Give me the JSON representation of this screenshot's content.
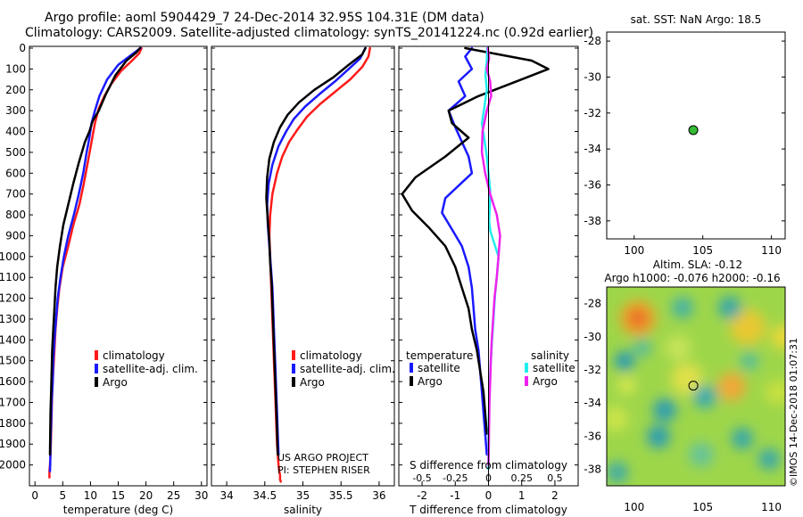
{
  "header": {
    "title": "Argo profile: aoml 5904429_7 24-Dec-2014 32.95S 104.31E (DM data)",
    "subtitle": "Climatology: CARS2009. Satellite-adjusted climatology: synTS_20141224.nc (0.92d earlier)"
  },
  "colors": {
    "climatology": "#ff1a1a",
    "satellite": "#1a1aff",
    "argo": "#000000",
    "sat_sal": "#22eeee",
    "argo_sal": "#ee22ee",
    "float_marker": "#33bb33"
  },
  "chart_data": [
    {
      "type": "line",
      "name_id": "temperature",
      "xlabel": "temperature (deg C)",
      "xlim": [
        -1,
        31
      ],
      "ylim": [
        2100,
        0
      ],
      "xticks": [
        0,
        5,
        10,
        15,
        20,
        25,
        30
      ],
      "xticklabels": [
        "0",
        "5",
        "10",
        "15",
        "20",
        "25",
        "30"
      ],
      "yticks": [
        0,
        100,
        200,
        300,
        400,
        500,
        600,
        700,
        800,
        900,
        1000,
        1100,
        1200,
        1300,
        1400,
        1500,
        1600,
        1700,
        1800,
        1900,
        2000
      ],
      "yticklabels": [
        "0",
        "100",
        "200",
        "300",
        "400",
        "500",
        "600",
        "700",
        "800",
        "900",
        "1000",
        "1100",
        "1200",
        "1300",
        "1400",
        "1500",
        "1600",
        "1700",
        "1800",
        "1900",
        "2000"
      ],
      "legend": [
        "climatology",
        "satellite-adj. clim.",
        "Argo"
      ],
      "series": [
        {
          "name": "climatology",
          "color": "#ff1a1a",
          "x": [
            19.2,
            18.8,
            17.5,
            15.5,
            13.8,
            12.5,
            11.5,
            10.8,
            10.2,
            9.5,
            8.8,
            8.0,
            6.9,
            6.0,
            5.0,
            4.4,
            4.0,
            3.7,
            3.5,
            3.3,
            3.1,
            3.0,
            2.9,
            2.8,
            2.7,
            2.6,
            2.6
          ],
          "y": [
            0,
            25,
            60,
            110,
            170,
            230,
            290,
            360,
            450,
            550,
            650,
            750,
            850,
            950,
            1050,
            1150,
            1250,
            1350,
            1450,
            1550,
            1650,
            1750,
            1850,
            1950,
            2000,
            2030,
            2060
          ]
        },
        {
          "name": "satellite-adj. clim.",
          "color": "#1a1aff",
          "x": [
            19.0,
            17.5,
            15.0,
            13.0,
            11.6,
            10.8,
            10.2,
            9.8,
            9.3,
            8.7,
            7.9,
            7.0,
            6.0,
            5.2,
            4.6,
            4.1,
            3.8,
            3.5,
            3.3,
            3.2,
            3.0,
            2.9,
            2.8,
            2.75,
            2.7
          ],
          "y": [
            0,
            30,
            80,
            150,
            230,
            300,
            360,
            430,
            500,
            600,
            700,
            800,
            900,
            1000,
            1100,
            1200,
            1300,
            1400,
            1500,
            1600,
            1700,
            1800,
            1900,
            2000,
            2030
          ]
        },
        {
          "name": "Argo",
          "color": "#000000",
          "x": [
            18.9,
            18.3,
            16.5,
            14.5,
            12.8,
            11.5,
            10.4,
            9.8,
            9.0,
            7.9,
            6.9,
            6.0,
            5.1,
            4.5,
            4.0,
            3.7,
            3.5,
            3.3,
            3.1,
            3.0,
            2.9,
            2.8,
            2.75,
            2.7
          ],
          "y": [
            0,
            20,
            60,
            130,
            220,
            300,
            350,
            400,
            450,
            550,
            650,
            750,
            850,
            950,
            1050,
            1150,
            1250,
            1350,
            1450,
            1550,
            1650,
            1750,
            1850,
            1950
          ]
        }
      ]
    },
    {
      "type": "line",
      "name_id": "salinity",
      "xlabel": "salinity",
      "xlim": [
        33.8,
        36.2
      ],
      "ylim": [
        2100,
        0
      ],
      "xticks": [
        34,
        34.5,
        35,
        35.5,
        36
      ],
      "xticklabels": [
        "34",
        "34.5",
        "35",
        "35.5",
        "36"
      ],
      "legend": [
        "climatology",
        "satellite-adj. clim.",
        "Argo"
      ],
      "credit": [
        "US ARGO PROJECT",
        "PI: STEPHEN RISER"
      ],
      "series": [
        {
          "name": "climatology",
          "color": "#ff1a1a",
          "x": [
            35.88,
            35.86,
            35.78,
            35.62,
            35.42,
            35.22,
            35.05,
            34.93,
            34.82,
            34.73,
            34.66,
            34.6,
            34.57,
            34.56,
            34.57,
            34.58,
            34.59,
            34.6,
            34.61,
            34.62,
            34.63,
            34.64,
            34.65,
            34.66,
            34.67,
            34.68,
            34.69,
            34.7,
            34.7,
            34.71
          ],
          "y": [
            0,
            40,
            90,
            150,
            210,
            270,
            330,
            390,
            450,
            520,
            600,
            700,
            800,
            900,
            1000,
            1100,
            1200,
            1300,
            1400,
            1500,
            1600,
            1700,
            1800,
            1900,
            1950,
            2000,
            2030,
            2050,
            2070,
            2080
          ]
        },
        {
          "name": "satellite-adj. clim.",
          "color": "#1a1aff",
          "x": [
            35.82,
            35.75,
            35.6,
            35.42,
            35.22,
            35.03,
            34.88,
            34.78,
            34.68,
            34.6,
            34.55,
            34.53,
            34.54,
            34.56,
            34.58,
            34.6,
            34.61,
            34.62,
            34.63,
            34.64,
            34.65,
            34.66,
            34.67,
            34.68
          ],
          "y": [
            0,
            50,
            100,
            160,
            220,
            280,
            340,
            400,
            470,
            560,
            650,
            750,
            850,
            950,
            1050,
            1150,
            1250,
            1350,
            1450,
            1550,
            1650,
            1750,
            1850,
            1950
          ]
        },
        {
          "name": "Argo",
          "color": "#000000",
          "x": [
            35.82,
            35.78,
            35.6,
            35.4,
            35.15,
            34.95,
            34.8,
            34.7,
            34.62,
            34.56,
            34.53,
            34.52,
            34.54,
            34.56,
            34.57,
            34.59,
            34.6,
            34.61,
            34.62,
            34.63,
            34.64,
            34.65,
            34.66,
            34.67
          ],
          "y": [
            0,
            30,
            80,
            140,
            200,
            260,
            320,
            380,
            450,
            530,
            620,
            720,
            830,
            930,
            1030,
            1130,
            1230,
            1330,
            1430,
            1530,
            1630,
            1730,
            1830,
            1950
          ]
        }
      ]
    },
    {
      "type": "line",
      "name_id": "difference",
      "xlabel": "T difference from climatology",
      "xlabel_top": "S difference from climatology",
      "xlim": [
        -2.7,
        2.7
      ],
      "ylim": [
        2100,
        0
      ],
      "xticks": [
        -2,
        -1,
        0,
        1,
        2
      ],
      "xticklabels": [
        "-2",
        "-1",
        "0",
        "1",
        "2"
      ],
      "sticklabels": [
        "-0.5",
        "-0.25",
        "0",
        "0.25",
        "0.5"
      ],
      "legend_temperature": {
        "title": "temperature",
        "items": [
          "satellite",
          "Argo"
        ]
      },
      "legend_salinity": {
        "title": "salinity",
        "items": [
          "satellite",
          "Argo"
        ]
      },
      "series": [
        {
          "name": "temperature satellite",
          "color": "#1a1aff",
          "x": [
            -0.5,
            -0.7,
            -0.5,
            -0.9,
            -0.7,
            -1.2,
            -1.0,
            -0.8,
            -0.6,
            -0.5,
            -0.9,
            -1.3,
            -1.4,
            -1.1,
            -0.8,
            -0.6,
            -0.5,
            -0.45,
            -0.4,
            -0.3,
            -0.25,
            -0.2,
            -0.15,
            -0.1,
            -0.05
          ],
          "y": [
            0,
            40,
            100,
            160,
            230,
            300,
            380,
            450,
            520,
            600,
            660,
            720,
            790,
            870,
            950,
            1050,
            1150,
            1250,
            1350,
            1450,
            1550,
            1650,
            1750,
            1850,
            1950
          ]
        },
        {
          "name": "temperature Argo",
          "color": "#000000",
          "x": [
            -0.7,
            0.3,
            1.3,
            1.8,
            1.0,
            -0.3,
            -1.2,
            -1.1,
            -0.6,
            -1.3,
            -2.2,
            -2.6,
            -2.3,
            -1.8,
            -1.3,
            -1.0,
            -0.8,
            -0.6,
            -0.5,
            -0.35,
            -0.25,
            -0.15,
            -0.1,
            -0.05
          ],
          "y": [
            0,
            30,
            60,
            100,
            150,
            230,
            300,
            360,
            430,
            520,
            620,
            700,
            780,
            860,
            950,
            1050,
            1150,
            1250,
            1350,
            1450,
            1550,
            1650,
            1750,
            1850
          ]
        },
        {
          "name": "salinity satellite",
          "color": "#22eeee",
          "x": [
            -0.04,
            -0.05,
            -0.09,
            -0.05,
            -0.12,
            -0.2,
            -0.12,
            -0.05,
            0.0,
            0.05,
            0.04,
            0.02,
            0.06,
            0.18,
            0.3,
            0.26,
            0.2,
            0.15,
            0.1,
            0.06,
            0.03,
            0.01,
            0.0,
            0.0
          ],
          "y": [
            0,
            60,
            130,
            200,
            280,
            360,
            440,
            520,
            600,
            680,
            760,
            830,
            880,
            940,
            1000,
            1080,
            1180,
            1300,
            1420,
            1540,
            1660,
            1780,
            1900,
            2020
          ]
        },
        {
          "name": "salinity Argo",
          "color": "#ee22ee",
          "x": [
            -0.02,
            0.02,
            -0.05,
            0.05,
            0.08,
            -0.05,
            -0.18,
            -0.2,
            -0.1,
            0.05,
            0.25,
            0.35,
            0.3,
            0.25,
            0.18,
            0.14,
            0.1,
            0.07,
            0.05,
            0.03,
            0.02,
            0.01,
            0.0
          ],
          "y": [
            0,
            50,
            100,
            160,
            230,
            300,
            400,
            500,
            600,
            700,
            800,
            900,
            1000,
            1100,
            1200,
            1300,
            1400,
            1500,
            1600,
            1700,
            1800,
            1900,
            2000
          ]
        }
      ]
    },
    {
      "type": "scatter",
      "name_id": "sst_map",
      "title": "sat. SST: NaN Argo: 18.5",
      "xlim": [
        98,
        111
      ],
      "ylim": [
        -39,
        -27.5
      ],
      "xticks": [
        100,
        105,
        110
      ],
      "yticks": [
        -28,
        -30,
        -32,
        -34,
        -36,
        -38
      ],
      "points": [
        {
          "x": 104.31,
          "y": -32.95
        }
      ]
    },
    {
      "type": "heatmap",
      "name_id": "sla_map",
      "title": "Altim. SLA: -0.12",
      "subtitle": "Argo h1000: -0.076 h2000: -0.16",
      "xlim": [
        98,
        111
      ],
      "ylim": [
        -39,
        -27
      ],
      "xticks": [
        100,
        105,
        110
      ],
      "yticks": [
        -28,
        -30,
        -32,
        -34,
        -36,
        -38
      ],
      "points": [
        {
          "x": 104.31,
          "y": -32.95
        }
      ],
      "stamp": "©IMOS 14-Dec-2018 01:07:31"
    }
  ]
}
